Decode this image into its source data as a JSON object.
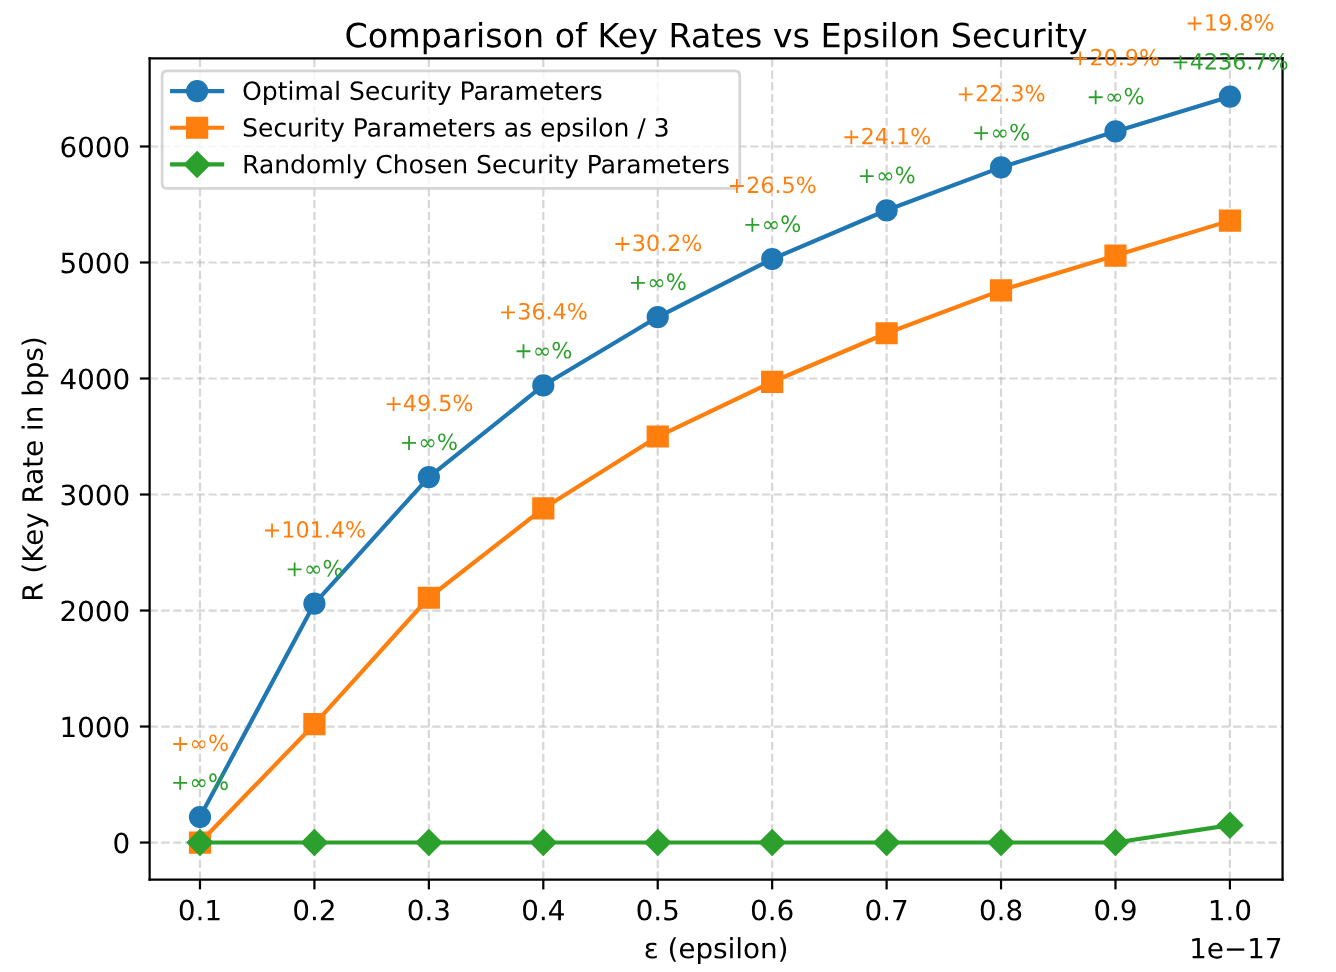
{
  "chart_data": {
    "type": "line",
    "title": "Comparison of Key Rates vs Epsilon Security",
    "xlabel": "ε (epsilon)",
    "ylabel": "R (Key Rate in bps)",
    "x": [
      0.1,
      0.2,
      0.3,
      0.4,
      0.5,
      0.6,
      0.7,
      0.8,
      0.9,
      1.0
    ],
    "series": [
      {
        "name": "Optimal Security Parameters",
        "color": "#1f77b4",
        "marker": "circle",
        "values": [
          220,
          2060,
          3150,
          3940,
          4530,
          5030,
          5450,
          5820,
          6130,
          6430
        ]
      },
      {
        "name": "Security Parameters as epsilon / 3",
        "color": "#ff7f0e",
        "marker": "square",
        "values": [
          0,
          1020,
          2110,
          2880,
          3500,
          3970,
          4390,
          4760,
          5060,
          5360
        ]
      },
      {
        "name": "Randomly Chosen Security Parameters",
        "color": "#2ca02c",
        "marker": "diamond",
        "values": [
          0,
          0,
          0,
          0,
          0,
          0,
          0,
          0,
          0,
          150
        ]
      }
    ],
    "annotations": [
      "+∞%",
      "+101.4%",
      "+49.5%",
      "+36.4%",
      "+30.2%",
      "+26.5%",
      "+24.1%",
      "+22.3%",
      "+20.9%",
      "+19.8%",
      "+∞%",
      "+∞%",
      "+∞%",
      "+∞%",
      "+∞%",
      "+∞%",
      "+∞%",
      "+∞%",
      "+∞%",
      "+4236.7%",
      "1e−17"
    ],
    "xlim": [
      0.056,
      1.046
    ],
    "xticks": [
      0.1,
      0.2,
      0.3,
      0.4,
      0.5,
      0.6,
      0.7,
      0.8,
      0.9,
      {
        "value": 1.0,
        "label": "1.0"
      }
    ],
    "ylim": [
      -320,
      6760
    ],
    "yticks": [
      0,
      1000,
      2000,
      3000,
      4000,
      5000,
      6000
    ],
    "grid": true,
    "legend": "top left",
    "line_style": "solid"
  }
}
